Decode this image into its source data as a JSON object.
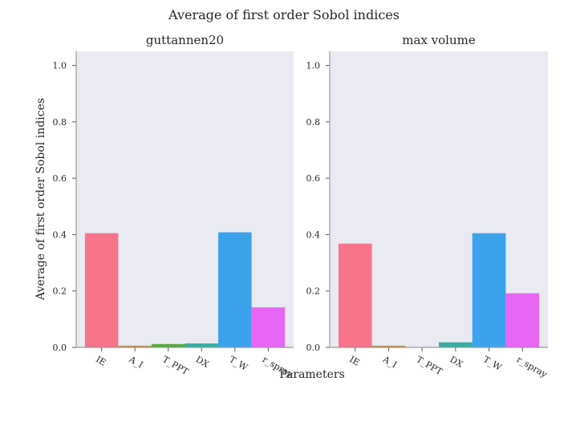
{
  "figure": {
    "suptitle": "Average of first order Sobol indices",
    "xlabel": "Parameters",
    "ylabel": "Average of first order Sobol indices"
  },
  "chart_data": [
    {
      "type": "bar",
      "title": "guttannen20",
      "categories": [
        "IE",
        "A_I",
        "T_PPT",
        "DX",
        "T_W",
        "r_spray"
      ],
      "values": [
        0.405,
        0.006,
        0.012,
        0.014,
        0.408,
        0.142
      ],
      "colors": [
        "#f7748a",
        "#c1964b",
        "#55ac3b",
        "#36ada4",
        "#3ba3ec",
        "#e866f4"
      ],
      "ylim": [
        0,
        1.05
      ],
      "yticks": [
        "0.0",
        "0.2",
        "0.4",
        "0.6",
        "0.8",
        "1.0"
      ],
      "grid": false
    },
    {
      "type": "bar",
      "title": "max volume",
      "categories": [
        "IE",
        "A_I",
        "T_PPT",
        "DX",
        "T_W",
        "r_spray"
      ],
      "values": [
        0.368,
        0.006,
        0.0,
        0.018,
        0.405,
        0.192
      ],
      "colors": [
        "#f7748a",
        "#c1964b",
        "#55ac3b",
        "#36ada4",
        "#3ba3ec",
        "#e866f4"
      ],
      "ylim": [
        0,
        1.05
      ],
      "yticks": [
        "0.0",
        "0.2",
        "0.4",
        "0.6",
        "0.8",
        "1.0"
      ],
      "grid": false
    }
  ]
}
